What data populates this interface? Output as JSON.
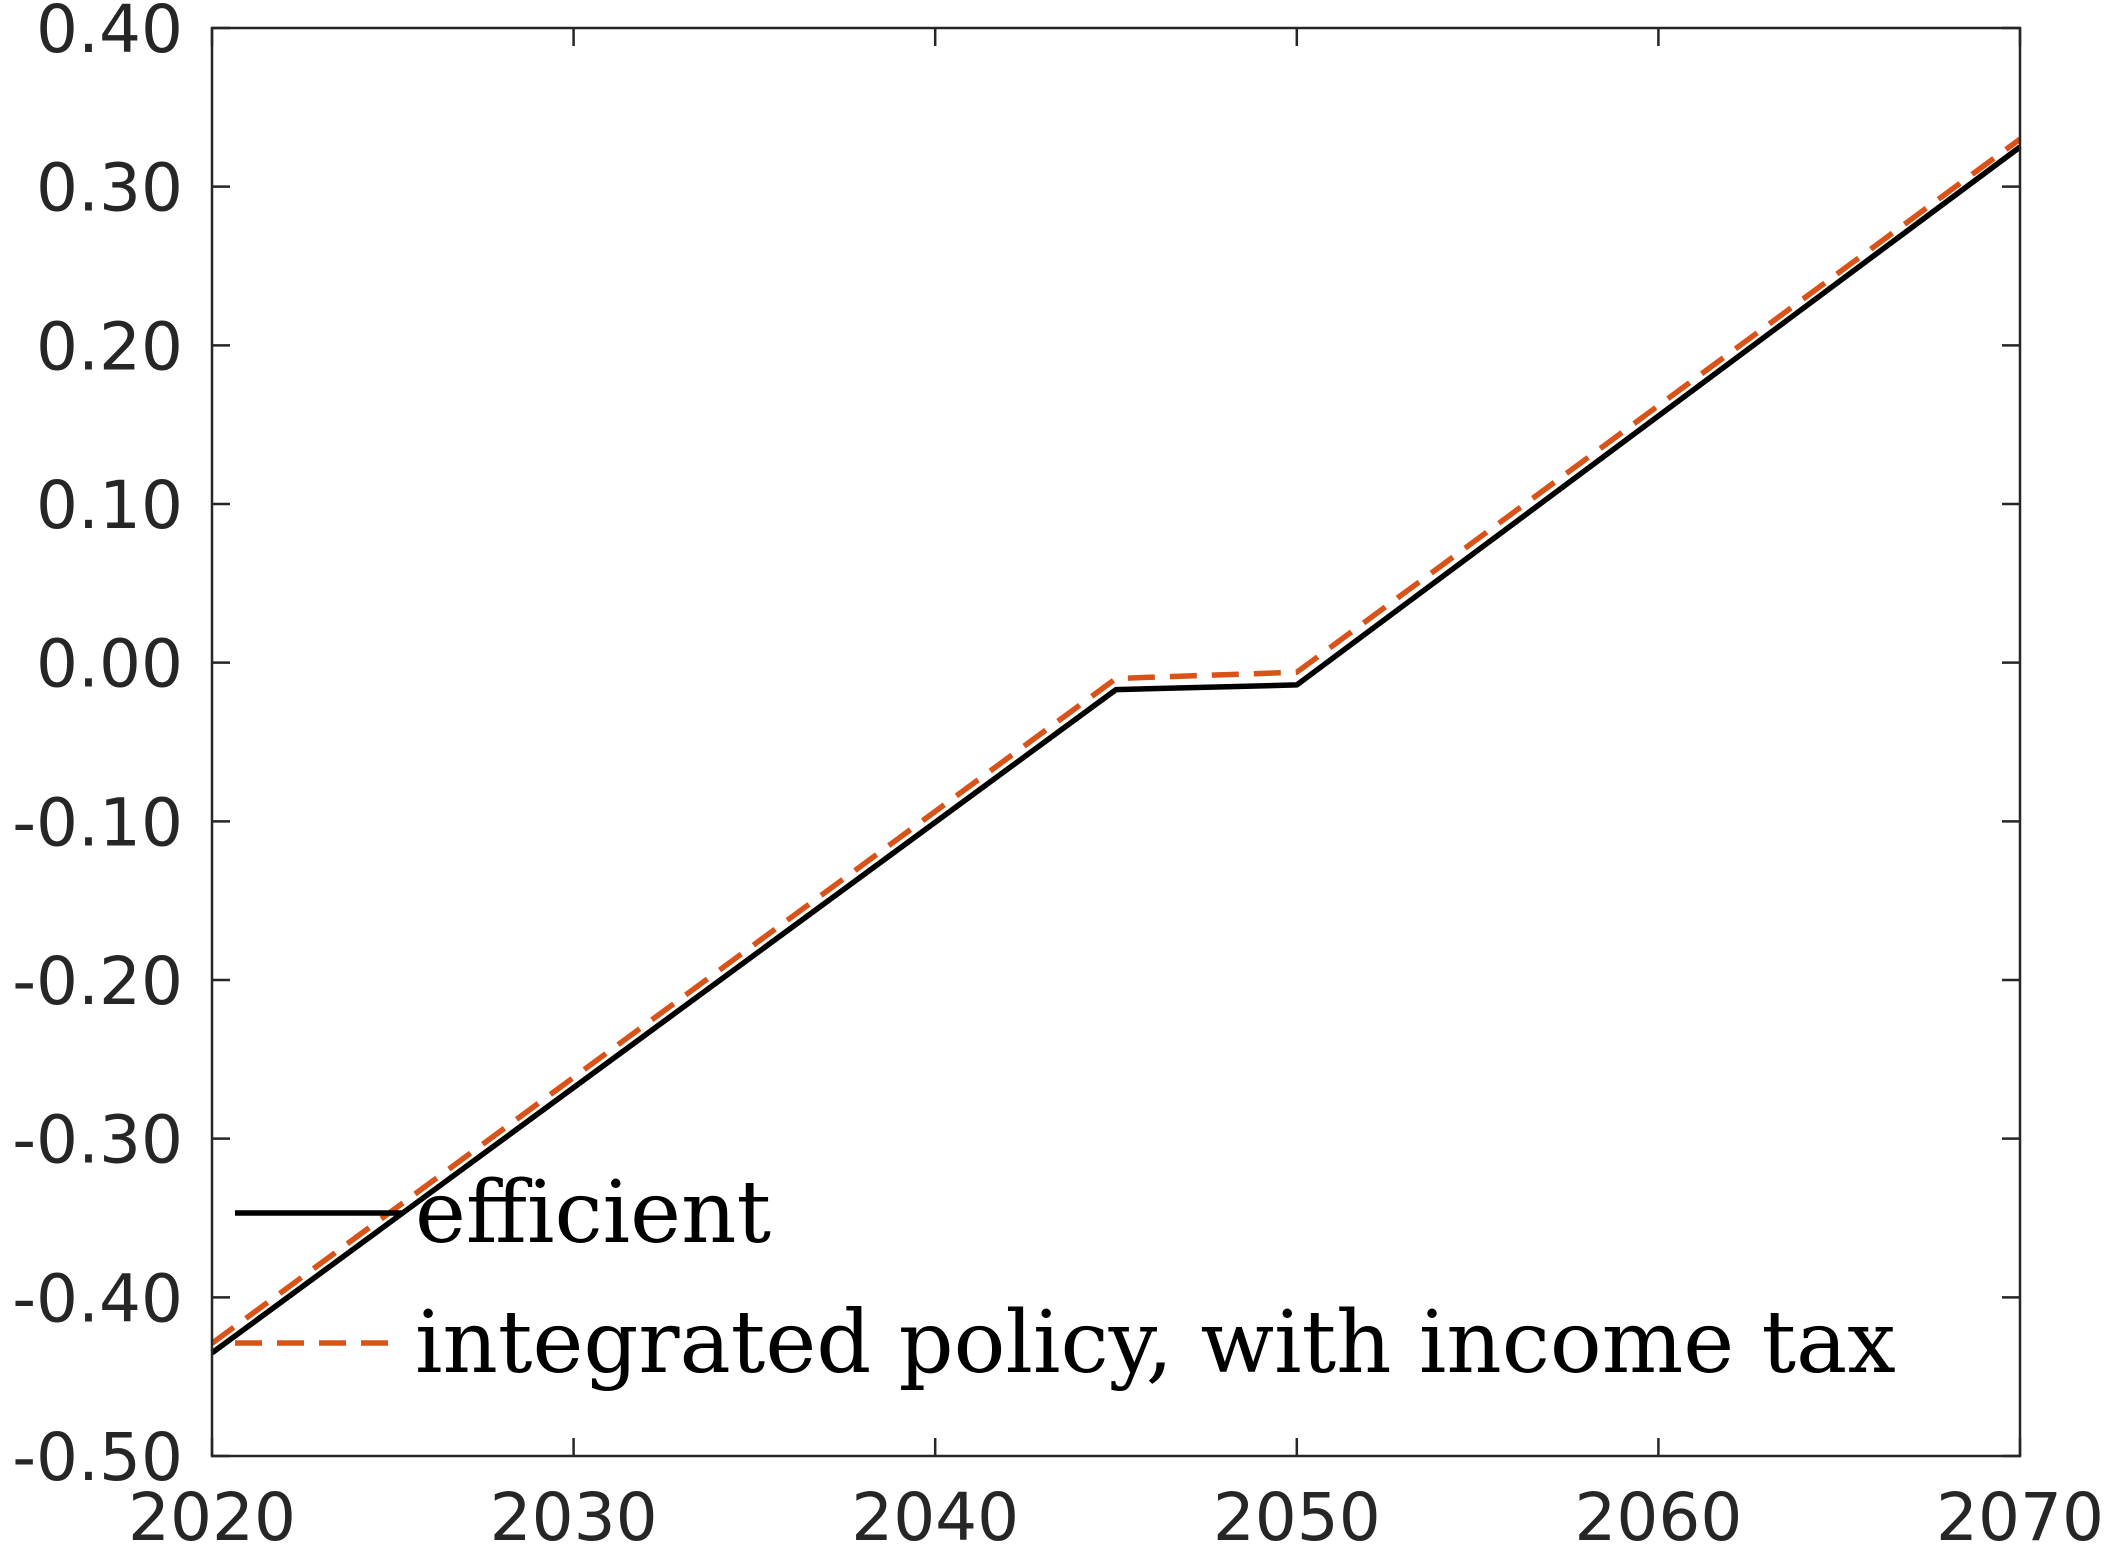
{
  "chart_data": {
    "type": "line",
    "title": "",
    "xlabel": "",
    "ylabel": "",
    "xlim": [
      2020,
      2070
    ],
    "ylim": [
      -0.5,
      0.4
    ],
    "xticks": [
      2020,
      2030,
      2040,
      2050,
      2060,
      2070
    ],
    "yticks": [
      -0.5,
      -0.4,
      -0.3,
      -0.2,
      -0.1,
      0.0,
      0.1,
      0.2,
      0.3,
      0.4
    ],
    "xtick_labels": [
      "2020",
      "2030",
      "2040",
      "2050",
      "2060",
      "2070"
    ],
    "ytick_labels": [
      "-0.50",
      "-0.40",
      "-0.30",
      "-0.20",
      "-0.10",
      "0.00",
      "0.10",
      "0.20",
      "0.30",
      "0.40"
    ],
    "grid": false,
    "legend_position": "bottom-left",
    "series": [
      {
        "name": "efficient",
        "color": "#000000",
        "style": "solid",
        "x": [
          2020,
          2045,
          2050,
          2070
        ],
        "y": [
          -0.435,
          -0.017,
          -0.014,
          0.325
        ]
      },
      {
        "name": "integrated policy, with income tax",
        "color": "#D95319",
        "style": "dashed",
        "x": [
          2020,
          2045,
          2050,
          2070
        ],
        "y": [
          -0.429,
          -0.01,
          -0.006,
          0.33
        ]
      }
    ]
  }
}
